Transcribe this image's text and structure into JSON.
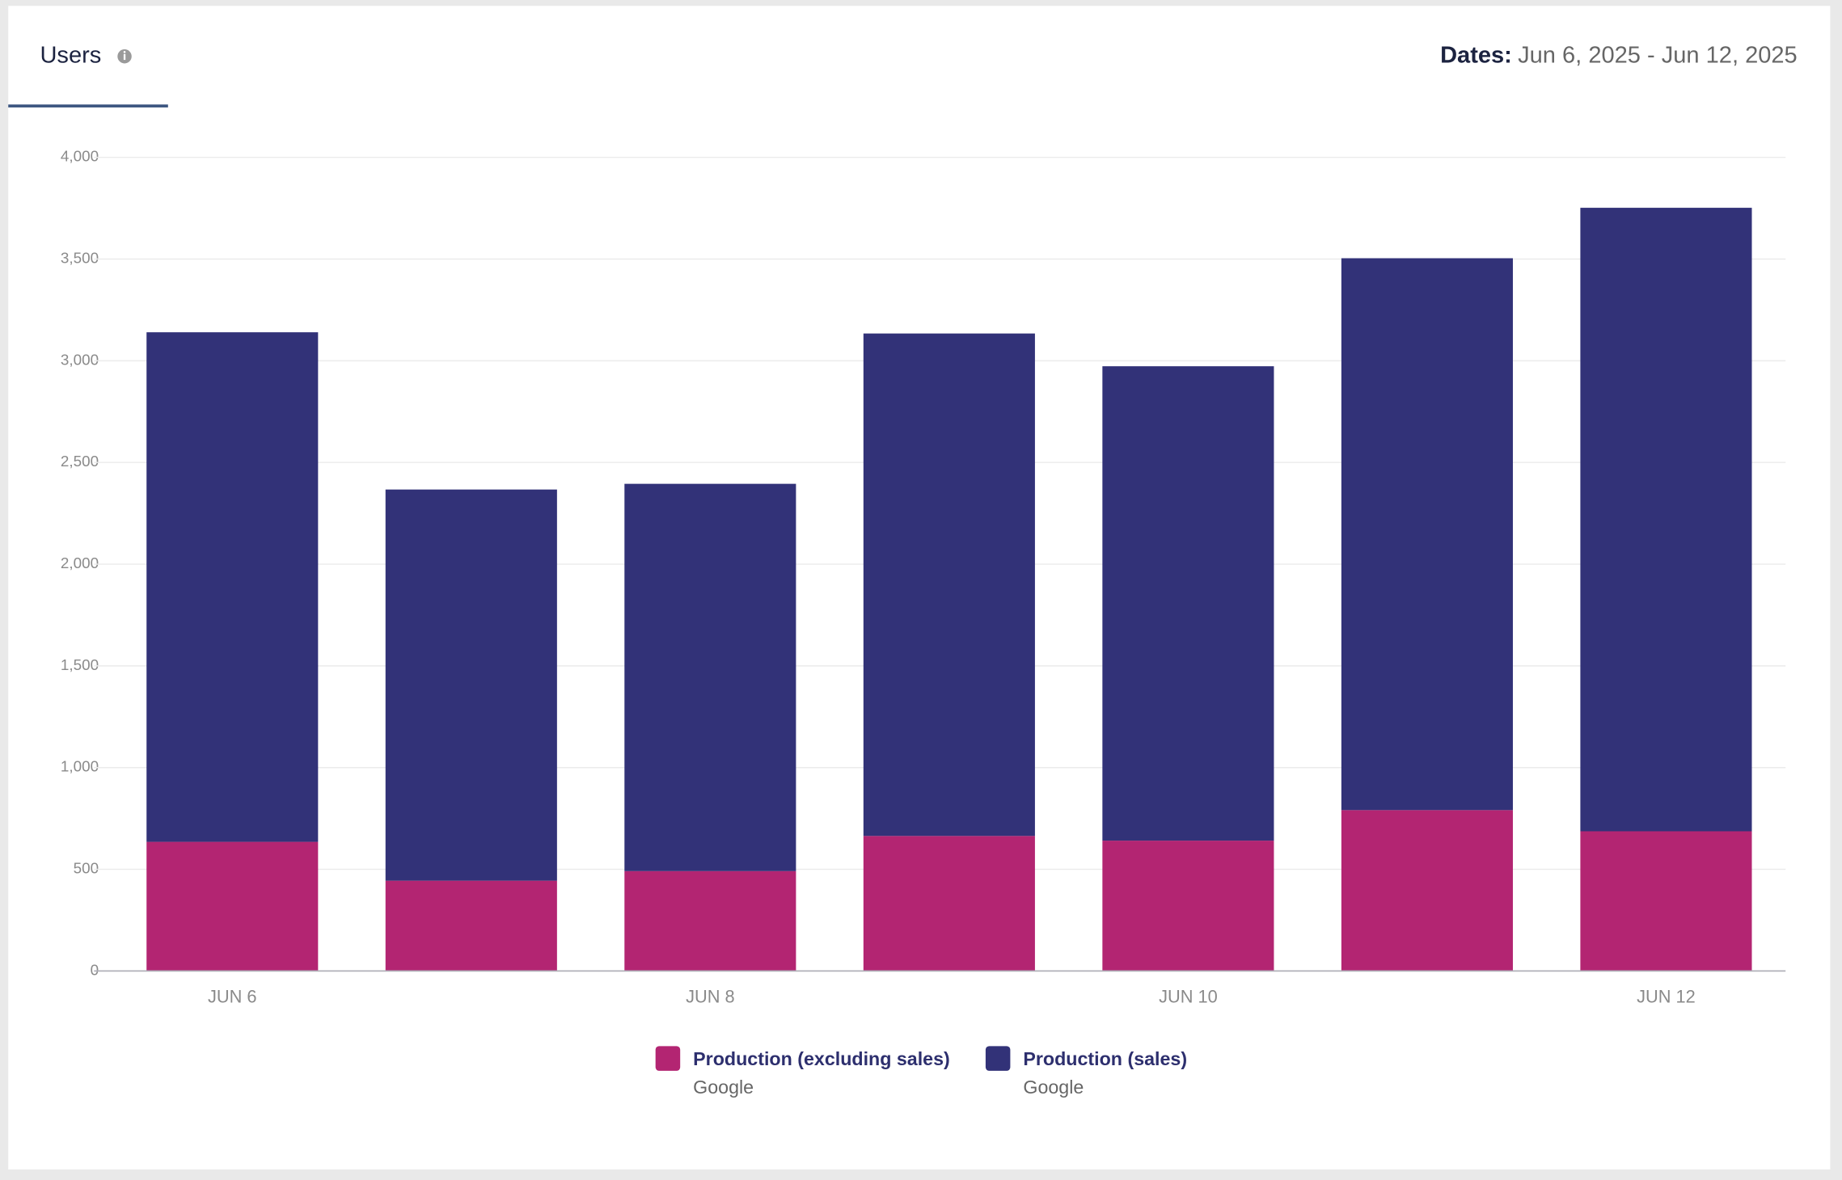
{
  "header": {
    "tab": "Users",
    "dates_label": "Dates:",
    "dates_value": "Jun 6, 2025 - Jun 12, 2025"
  },
  "chart_data": {
    "type": "bar",
    "stacked": true,
    "categories": [
      "JUN 6",
      null,
      "JUN 8",
      null,
      "JUN 10",
      null,
      "JUN 12"
    ],
    "series": [
      {
        "name": "Production (excluding sales)",
        "source": "Google",
        "color": "#b32572",
        "values": [
          635,
          444,
          491,
          664,
          641,
          791,
          687
        ]
      },
      {
        "name": "Production (sales)",
        "source": "Google",
        "color": "#323278",
        "values": [
          2505,
          1923,
          1904,
          2470,
          2332,
          2713,
          3065
        ]
      }
    ],
    "ylim": [
      0,
      4000
    ],
    "yticks": [
      0,
      500,
      {
        "value": 1000,
        "label": "1,000"
      },
      {
        "value": 1500,
        "label": "1,500"
      },
      {
        "value": 2000,
        "label": "2,000"
      },
      {
        "value": 2500,
        "label": "2,500"
      },
      {
        "value": 3000,
        "label": "3,000"
      },
      {
        "value": 3500,
        "label": "3,500"
      },
      {
        "value": 4000,
        "label": "4,000"
      }
    ],
    "grid": true,
    "legend": "bottom"
  }
}
